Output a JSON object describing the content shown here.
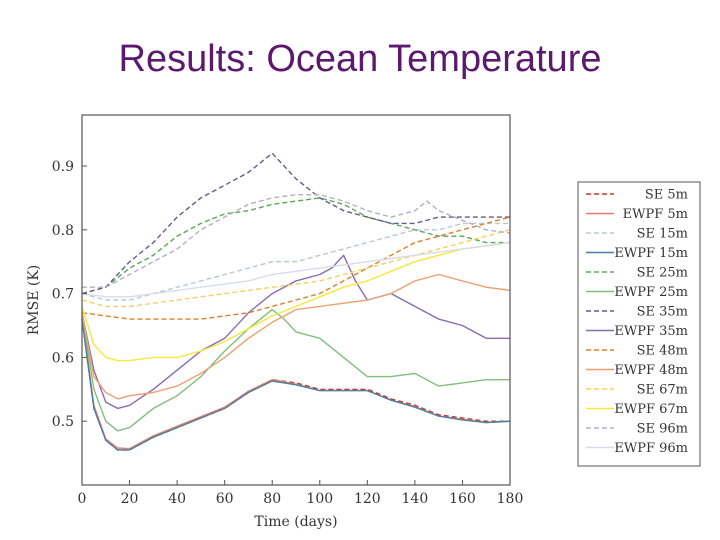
{
  "slide": {
    "title": "Results: Ocean Temperature"
  },
  "chart_data": {
    "type": "line",
    "title": "",
    "xlabel": "Time (days)",
    "ylabel": "RMSE (K)",
    "xlim": [
      0,
      180
    ],
    "ylim": [
      0.4,
      0.98
    ],
    "xticks": [
      0,
      20,
      40,
      60,
      80,
      100,
      120,
      140,
      160,
      180
    ],
    "yticks": [
      0.5,
      0.6,
      0.7,
      0.8,
      0.9
    ],
    "ytick_labels": [
      "0.5",
      "0.6",
      "0.7",
      "0.8",
      "0.9"
    ],
    "legend_position": "right",
    "series": [
      {
        "name": "SE 5m",
        "color": "#c0392b",
        "dash": "dashed",
        "x": [
          0,
          5,
          10,
          15,
          20,
          30,
          40,
          50,
          60,
          70,
          80,
          90,
          100,
          110,
          120,
          130,
          140,
          150,
          160,
          170,
          180
        ],
        "y": [
          0.66,
          0.52,
          0.47,
          0.455,
          0.455,
          0.475,
          0.49,
          0.505,
          0.52,
          0.545,
          0.565,
          0.56,
          0.55,
          0.55,
          0.55,
          0.535,
          0.525,
          0.51,
          0.505,
          0.5,
          0.5
        ]
      },
      {
        "name": "EWPF 5m",
        "color": "#e08070",
        "dash": "solid",
        "x": [
          0,
          5,
          10,
          15,
          20,
          30,
          40,
          50,
          60,
          70,
          80,
          90,
          100,
          110,
          120,
          130,
          140,
          150,
          160,
          170,
          180
        ],
        "y": [
          0.665,
          0.525,
          0.472,
          0.458,
          0.457,
          0.477,
          0.492,
          0.507,
          0.522,
          0.547,
          0.565,
          0.558,
          0.548,
          0.548,
          0.548,
          0.533,
          0.523,
          0.508,
          0.503,
          0.498,
          0.5
        ]
      },
      {
        "name": "SE 15m",
        "color": "#b8c8d8",
        "dash": "dashed",
        "x": [
          0,
          10,
          20,
          30,
          40,
          50,
          60,
          70,
          80,
          90,
          100,
          110,
          120,
          130,
          140,
          150,
          160,
          170,
          180
        ],
        "y": [
          0.7,
          0.69,
          0.69,
          0.7,
          0.71,
          0.72,
          0.73,
          0.74,
          0.75,
          0.75,
          0.76,
          0.77,
          0.78,
          0.79,
          0.8,
          0.8,
          0.81,
          0.81,
          0.81
        ]
      },
      {
        "name": "EWPF 15m",
        "color": "#4a7fa0",
        "dash": "solid",
        "x": [
          0,
          5,
          10,
          15,
          20,
          30,
          40,
          50,
          60,
          70,
          80,
          90,
          100,
          110,
          120,
          130,
          140,
          150,
          160,
          170,
          180
        ],
        "y": [
          0.66,
          0.52,
          0.47,
          0.455,
          0.455,
          0.475,
          0.49,
          0.505,
          0.52,
          0.545,
          0.563,
          0.557,
          0.548,
          0.548,
          0.548,
          0.533,
          0.522,
          0.508,
          0.502,
          0.498,
          0.5
        ]
      },
      {
        "name": "SE 25m",
        "color": "#5aa85a",
        "dash": "dashed",
        "x": [
          0,
          10,
          20,
          30,
          40,
          50,
          60,
          70,
          80,
          90,
          100,
          110,
          120,
          130,
          140,
          150,
          160,
          170,
          180
        ],
        "y": [
          0.7,
          0.71,
          0.74,
          0.76,
          0.79,
          0.81,
          0.825,
          0.83,
          0.84,
          0.845,
          0.85,
          0.84,
          0.82,
          0.81,
          0.8,
          0.79,
          0.79,
          0.78,
          0.78
        ]
      },
      {
        "name": "EWPF 25m",
        "color": "#7fc07f",
        "dash": "solid",
        "x": [
          0,
          5,
          10,
          15,
          20,
          30,
          40,
          50,
          60,
          70,
          80,
          85,
          90,
          100,
          110,
          120,
          130,
          140,
          150,
          160,
          170,
          180
        ],
        "y": [
          0.67,
          0.55,
          0.5,
          0.485,
          0.49,
          0.52,
          0.54,
          0.57,
          0.61,
          0.645,
          0.675,
          0.66,
          0.64,
          0.63,
          0.6,
          0.57,
          0.57,
          0.575,
          0.555,
          0.56,
          0.565,
          0.565
        ]
      },
      {
        "name": "SE 35m",
        "color": "#6a5a8a",
        "dash": "dashed",
        "x": [
          0,
          10,
          20,
          30,
          40,
          50,
          60,
          70,
          80,
          85,
          90,
          100,
          110,
          120,
          130,
          140,
          150,
          160,
          170,
          180
        ],
        "y": [
          0.7,
          0.71,
          0.75,
          0.78,
          0.82,
          0.85,
          0.87,
          0.89,
          0.92,
          0.9,
          0.88,
          0.85,
          0.83,
          0.82,
          0.81,
          0.81,
          0.82,
          0.82,
          0.82,
          0.82
        ]
      },
      {
        "name": "EWPF 35m",
        "color": "#8a6ab0",
        "dash": "solid",
        "x": [
          0,
          5,
          10,
          15,
          20,
          30,
          40,
          50,
          60,
          70,
          80,
          90,
          100,
          105,
          110,
          115,
          120,
          130,
          140,
          150,
          160,
          170,
          180
        ],
        "y": [
          0.67,
          0.58,
          0.53,
          0.52,
          0.525,
          0.55,
          0.58,
          0.61,
          0.63,
          0.67,
          0.7,
          0.72,
          0.73,
          0.74,
          0.76,
          0.72,
          0.69,
          0.7,
          0.68,
          0.66,
          0.65,
          0.63,
          0.63
        ]
      },
      {
        "name": "SE 48m",
        "color": "#e07f2a",
        "dash": "dashed",
        "x": [
          0,
          10,
          20,
          30,
          40,
          50,
          60,
          70,
          80,
          90,
          100,
          110,
          120,
          130,
          140,
          150,
          160,
          170,
          180
        ],
        "y": [
          0.67,
          0.665,
          0.66,
          0.66,
          0.66,
          0.66,
          0.665,
          0.67,
          0.68,
          0.69,
          0.7,
          0.72,
          0.74,
          0.76,
          0.78,
          0.79,
          0.8,
          0.81,
          0.82
        ]
      },
      {
        "name": "EWPF 48m",
        "color": "#f0a070",
        "dash": "solid",
        "x": [
          0,
          5,
          10,
          15,
          20,
          30,
          40,
          50,
          60,
          70,
          80,
          90,
          100,
          110,
          120,
          130,
          140,
          150,
          160,
          170,
          180
        ],
        "y": [
          0.67,
          0.57,
          0.545,
          0.535,
          0.54,
          0.545,
          0.555,
          0.575,
          0.6,
          0.63,
          0.655,
          0.675,
          0.68,
          0.685,
          0.69,
          0.7,
          0.72,
          0.73,
          0.72,
          0.71,
          0.705
        ]
      },
      {
        "name": "SE 67m",
        "color": "#f5d060",
        "dash": "dashed",
        "x": [
          0,
          10,
          20,
          30,
          40,
          50,
          60,
          70,
          80,
          90,
          100,
          110,
          120,
          130,
          140,
          150,
          160,
          170,
          180
        ],
        "y": [
          0.69,
          0.68,
          0.68,
          0.685,
          0.69,
          0.695,
          0.7,
          0.705,
          0.71,
          0.715,
          0.72,
          0.73,
          0.74,
          0.75,
          0.76,
          0.77,
          0.78,
          0.79,
          0.8
        ]
      },
      {
        "name": "EWPF 67m",
        "color": "#f7e83a",
        "dash": "solid",
        "x": [
          0,
          5,
          10,
          15,
          20,
          30,
          40,
          50,
          60,
          70,
          80,
          90,
          100,
          110,
          120,
          130,
          140,
          150,
          160,
          170,
          180
        ],
        "y": [
          0.68,
          0.62,
          0.6,
          0.595,
          0.595,
          0.6,
          0.6,
          0.61,
          0.625,
          0.645,
          0.665,
          0.68,
          0.695,
          0.71,
          0.72,
          0.735,
          0.75,
          0.76,
          0.77,
          0.775,
          0.78
        ]
      },
      {
        "name": "SE 96m",
        "color": "#b0b0c8",
        "dash": "dashed",
        "x": [
          0,
          10,
          20,
          30,
          40,
          50,
          60,
          70,
          80,
          90,
          100,
          110,
          120,
          130,
          140,
          145,
          150,
          160,
          170,
          180
        ],
        "y": [
          0.71,
          0.71,
          0.73,
          0.75,
          0.77,
          0.8,
          0.82,
          0.84,
          0.85,
          0.855,
          0.855,
          0.845,
          0.83,
          0.82,
          0.83,
          0.845,
          0.83,
          0.815,
          0.8,
          0.795
        ]
      },
      {
        "name": "EWPF 96m",
        "color": "#d8dce8",
        "dash": "solid",
        "x": [
          0,
          10,
          20,
          30,
          40,
          50,
          60,
          70,
          80,
          90,
          100,
          110,
          120,
          130,
          140,
          150,
          160,
          170,
          180
        ],
        "y": [
          0.7,
          0.695,
          0.695,
          0.7,
          0.705,
          0.71,
          0.715,
          0.72,
          0.73,
          0.735,
          0.74,
          0.745,
          0.75,
          0.755,
          0.76,
          0.765,
          0.77,
          0.775,
          0.78
        ]
      }
    ]
  }
}
